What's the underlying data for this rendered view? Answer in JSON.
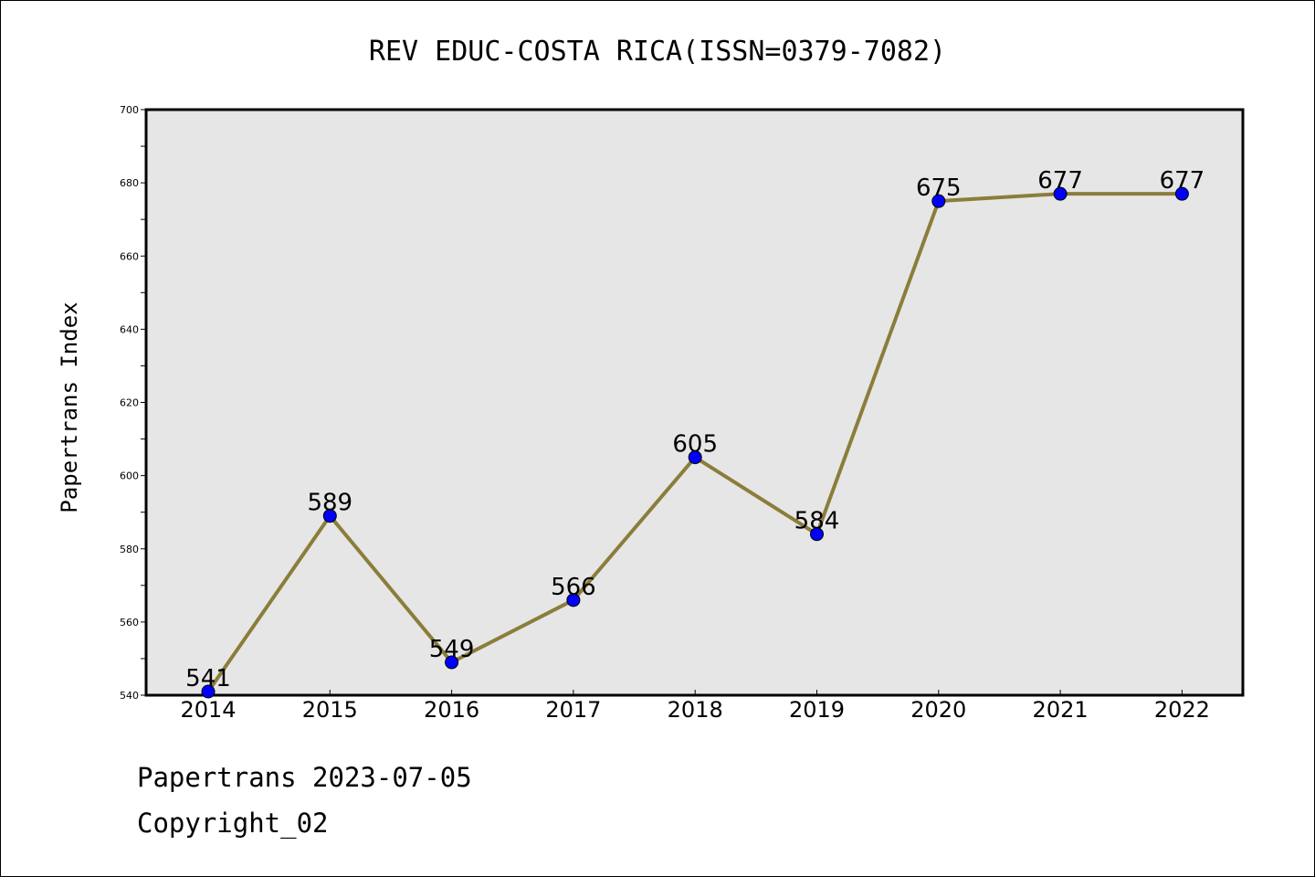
{
  "chart_data": {
    "type": "line",
    "title": "REV EDUC-COSTA RICA(ISSN=0379-7082)",
    "ylabel": "Papertrans Index",
    "xlabel": "",
    "categories": [
      "2014",
      "2015",
      "2016",
      "2017",
      "2018",
      "2019",
      "2020",
      "2021",
      "2022"
    ],
    "values": [
      541,
      589,
      549,
      566,
      605,
      584,
      675,
      677,
      677
    ],
    "ylim": [
      540,
      700
    ],
    "yticks": [
      540,
      560,
      580,
      600,
      620,
      640,
      660,
      680,
      700
    ],
    "grid": false,
    "line_color": "#8b7d3a",
    "marker_color": "#0000ff",
    "plot_background": "#e6e6e6"
  },
  "footer": {
    "line1": "Papertrans 2023-07-05",
    "line2": "Copyright_02"
  }
}
